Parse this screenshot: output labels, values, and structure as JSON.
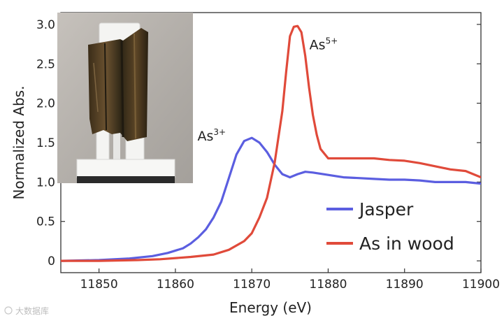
{
  "chart_data": {
    "type": "line",
    "title": "",
    "xlabel": "Energy (eV)",
    "ylabel": "Normalized Abs.",
    "xlim": [
      11845,
      11900
    ],
    "ylim": [
      -0.15,
      3.15
    ],
    "xticks": [
      11850,
      11860,
      11870,
      11880,
      11890,
      11900
    ],
    "xtick_labels": [
      "11850",
      "11860",
      "11870",
      "11880",
      "11890",
      "11900"
    ],
    "yticks": [
      0,
      0.5,
      1.0,
      1.5,
      2.0,
      2.5,
      3.0
    ],
    "ytick_labels": [
      "0",
      "0.5",
      "1.0",
      "1.5",
      "2.0",
      "2.5",
      "3.0"
    ],
    "grid": false,
    "legend_position": "bottom-right",
    "series": [
      {
        "name": "Jasper",
        "color": "#5b5ee0",
        "x": [
          11845,
          11850,
          11854,
          11857,
          11859,
          11861,
          11862,
          11863,
          11864,
          11865,
          11866,
          11867,
          11868,
          11869,
          11870,
          11871,
          11872,
          11873,
          11874,
          11875,
          11876,
          11877,
          11878,
          11880,
          11882,
          11884,
          11886,
          11888,
          11890,
          11892,
          11894,
          11896,
          11898,
          11900
        ],
        "y": [
          0.0,
          0.01,
          0.03,
          0.06,
          0.1,
          0.16,
          0.22,
          0.3,
          0.4,
          0.55,
          0.75,
          1.05,
          1.35,
          1.52,
          1.56,
          1.5,
          1.38,
          1.22,
          1.1,
          1.06,
          1.1,
          1.13,
          1.12,
          1.09,
          1.06,
          1.05,
          1.04,
          1.03,
          1.03,
          1.02,
          1.0,
          1.0,
          1.0,
          0.98
        ]
      },
      {
        "name": "As in wood",
        "color": "#e04a3a",
        "x": [
          11845,
          11850,
          11855,
          11858,
          11862,
          11865,
          11867,
          11869,
          11870,
          11871,
          11872,
          11873,
          11874,
          11874.5,
          11875,
          11875.5,
          11876,
          11876.5,
          11877,
          11877.5,
          11878,
          11878.5,
          11879,
          11880,
          11882,
          11884,
          11886,
          11888,
          11890,
          11892,
          11894,
          11896,
          11898,
          11900
        ],
        "y": [
          0.0,
          0.0,
          0.01,
          0.02,
          0.05,
          0.08,
          0.14,
          0.25,
          0.35,
          0.55,
          0.8,
          1.25,
          1.9,
          2.4,
          2.85,
          2.97,
          2.98,
          2.9,
          2.6,
          2.2,
          1.85,
          1.6,
          1.42,
          1.3,
          1.3,
          1.3,
          1.3,
          1.28,
          1.27,
          1.24,
          1.2,
          1.16,
          1.14,
          1.06
        ]
      }
    ],
    "annotations": [
      {
        "base": "As",
        "sup": "3+",
        "x": 11866,
        "y": 1.58
      },
      {
        "base": "As",
        "sup": "5+",
        "x": 11877,
        "y": 2.95
      }
    ]
  },
  "inset_photo": {
    "description_icon": "wood-sample-photo",
    "colors": {
      "background": "#b9b5b0",
      "wood": "#4a3a22",
      "holder": "#f4f4f2",
      "base": "#2a2a2a"
    }
  },
  "watermark": {
    "text": "大数据库"
  }
}
